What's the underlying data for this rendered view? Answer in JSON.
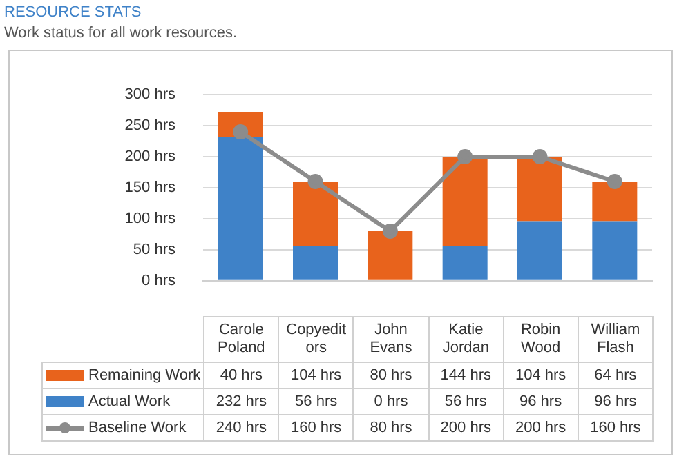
{
  "chart_data": {
    "type": "bar",
    "title": "RESOURCE STATS",
    "subtitle": "Work status for all work resources.",
    "categories": [
      "Carole Poland",
      "Copyeditors",
      "John Evans",
      "Katie Jordan",
      "Robin Wood",
      "William Flash"
    ],
    "stacked": true,
    "data_labels": true,
    "legend": "bottom",
    "grid": "y",
    "marker": "circle",
    "ylim": [
      0,
      300
    ],
    "yticks": [
      {
        "value": 0,
        "label": "0 hrs"
      },
      {
        "value": 50,
        "label": "50 hrs"
      },
      {
        "value": 100,
        "label": "100 hrs"
      },
      {
        "value": 150,
        "label": "150 hrs"
      },
      {
        "value": 200,
        "label": "200 hrs"
      },
      {
        "value": 250,
        "label": "250 hrs"
      },
      {
        "value": 300,
        "label": "300 hrs"
      }
    ],
    "series": [
      {
        "name": "Actual Work",
        "color": "#3f82c8",
        "values": [
          232,
          56,
          0,
          56,
          96,
          96
        ],
        "value_labels": [
          "232 hrs",
          "56 hrs",
          "0 hrs",
          "56 hrs",
          "96 hrs",
          "96 hrs"
        ]
      },
      {
        "name": "Remaining Work",
        "color": "#e8631c",
        "values": [
          40,
          104,
          80,
          144,
          104,
          64
        ],
        "value_labels": [
          "40 hrs",
          "104 hrs",
          "80 hrs",
          "144 hrs",
          "104 hrs",
          "64 hrs"
        ]
      },
      {
        "name": "Baseline Work",
        "type": "line",
        "color": "#8c8c8c",
        "values": [
          240,
          160,
          80,
          200,
          200,
          160
        ],
        "value_labels": [
          "240 hrs",
          "160 hrs",
          "80 hrs",
          "200 hrs",
          "200 hrs",
          "160 hrs"
        ]
      }
    ]
  }
}
